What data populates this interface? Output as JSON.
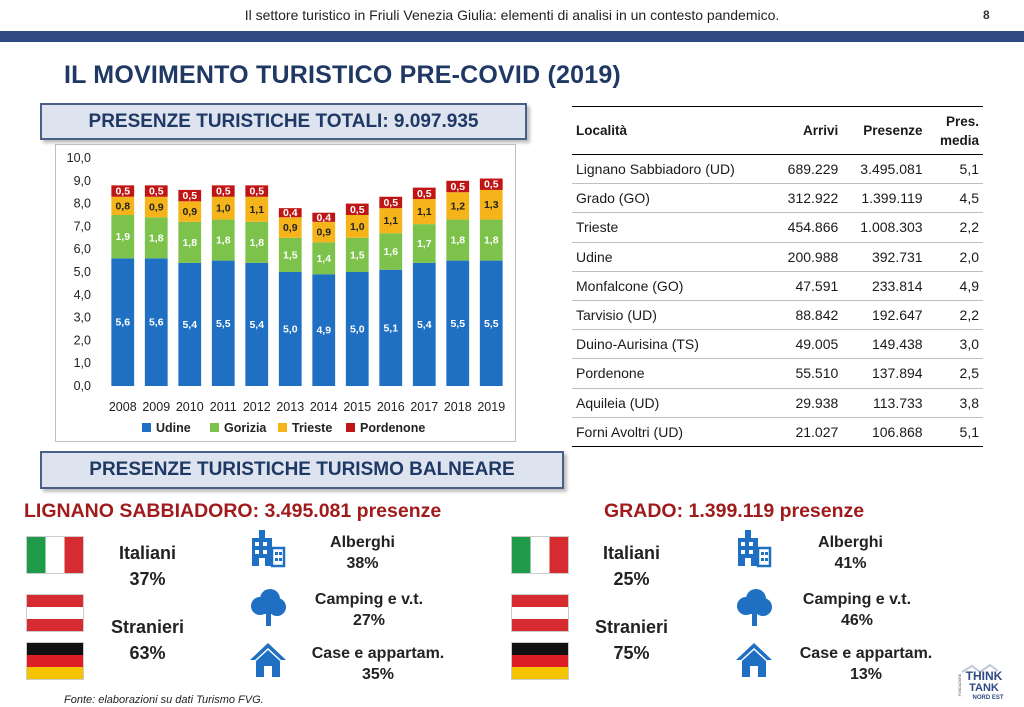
{
  "header": {
    "text": "Il settore turistico in Friuli Venezia Giulia: elementi di analisi in un contesto pandemico.",
    "page": "8"
  },
  "title": "IL MOVIMENTO TURISTICO PRE-COVID (2019)",
  "box1": "PRESENZE TURISTICHE TOTALI: 9.097.935",
  "box2": "PRESENZE TURISTICHE TURISMO BALNEARE",
  "chart_data": {
    "type": "bar",
    "stacked": true,
    "categories": [
      "2008",
      "2009",
      "2010",
      "2011",
      "2012",
      "2013",
      "2014",
      "2015",
      "2016",
      "2017",
      "2018",
      "2019"
    ],
    "series": [
      {
        "name": "Udine",
        "color": "#1f6fc2",
        "values": [
          5.6,
          5.6,
          5.4,
          5.5,
          5.4,
          5.0,
          4.9,
          5.0,
          5.1,
          5.4,
          5.5,
          5.5
        ]
      },
      {
        "name": "Gorizia",
        "color": "#7dc24b",
        "values": [
          1.9,
          1.8,
          1.8,
          1.8,
          1.8,
          1.5,
          1.4,
          1.5,
          1.6,
          1.7,
          1.8,
          1.8
        ]
      },
      {
        "name": "Trieste",
        "color": "#f5b41a",
        "values": [
          0.8,
          0.9,
          0.9,
          1.0,
          1.1,
          0.9,
          0.9,
          1.0,
          1.1,
          1.1,
          1.2,
          1.3
        ]
      },
      {
        "name": "Pordenone",
        "color": "#c01515",
        "values": [
          0.5,
          0.5,
          0.5,
          0.5,
          0.5,
          0.4,
          0.4,
          0.5,
          0.5,
          0.5,
          0.5,
          0.5
        ]
      }
    ],
    "ylim": [
      0,
      10
    ],
    "yticks": [
      "0,0",
      "1,0",
      "2,0",
      "3,0",
      "4,0",
      "5,0",
      "6,0",
      "7,0",
      "8,0",
      "9,0",
      "10,0"
    ],
    "legend_position": "bottom",
    "grid": false
  },
  "table": {
    "headers": {
      "localita": "Località",
      "arrivi": "Arrivi",
      "presenze": "Presenze",
      "media1": "Pres.",
      "media2": "media"
    },
    "rows": [
      {
        "localita": "Lignano Sabbiadoro (UD)",
        "arrivi": "689.229",
        "presenze": "3.495.081",
        "media": "5,1"
      },
      {
        "localita": "Grado (GO)",
        "arrivi": "312.922",
        "presenze": "1.399.119",
        "media": "4,5"
      },
      {
        "localita": "Trieste",
        "arrivi": "454.866",
        "presenze": "1.008.303",
        "media": "2,2"
      },
      {
        "localita": "Udine",
        "arrivi": "200.988",
        "presenze": "392.731",
        "media": "2,0"
      },
      {
        "localita": "Monfalcone (GO)",
        "arrivi": "47.591",
        "presenze": "233.814",
        "media": "4,9"
      },
      {
        "localita": "Tarvisio (UD)",
        "arrivi": "88.842",
        "presenze": "192.647",
        "media": "2,2"
      },
      {
        "localita": "Duino-Aurisina (TS)",
        "arrivi": "49.005",
        "presenze": "149.438",
        "media": "3,0"
      },
      {
        "localita": "Pordenone",
        "arrivi": "55.510",
        "presenze": "137.894",
        "media": "2,5"
      },
      {
        "localita": "Aquileia (UD)",
        "arrivi": "29.938",
        "presenze": "113.733",
        "media": "3,8"
      },
      {
        "localita": "Forni Avoltri (UD)",
        "arrivi": "21.027",
        "presenze": "106.868",
        "media": "5,1"
      }
    ]
  },
  "lignano": {
    "title": "LIGNANO SABBIADORO: 3.495.081 presenze",
    "italiani_label": "Italiani",
    "italiani_val": "37%",
    "stranieri_label": "Stranieri",
    "stranieri_val": "63%",
    "alberghi_label": "Alberghi",
    "alberghi_val": "38%",
    "camping_label": "Camping e v.t.",
    "camping_val": "27%",
    "case_label": "Case e appartam.",
    "case_val": "35%"
  },
  "grado": {
    "title": "GRADO: 1.399.119 presenze",
    "italiani_label": "Italiani",
    "italiani_val": "25%",
    "stranieri_label": "Stranieri",
    "stranieri_val": "75%",
    "alberghi_label": "Alberghi",
    "alberghi_val": "41%",
    "camping_label": "Camping e v.t.",
    "camping_val": "46%",
    "case_label": "Case e appartam.",
    "case_val": "13%"
  },
  "footnote": "Fonte: elaborazioni su dati Turismo FVG.",
  "logo": {
    "line1": "THINK",
    "line2": "TANK",
    "line3": "NORD EST",
    "small": "FONDAZIONE"
  },
  "icons": {
    "hotel": "building-icon",
    "camping": "tree-icon",
    "home": "house-icon"
  },
  "colors": {
    "accent": "#1f3864",
    "header_bar": "#2f4a82",
    "red": "#a01b1b",
    "icon_blue": "#1f6fc2"
  }
}
